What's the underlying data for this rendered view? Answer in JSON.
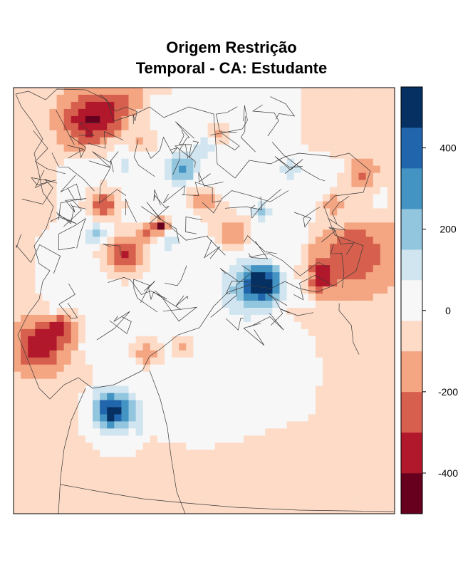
{
  "chart_data": {
    "type": "heatmap",
    "title_lines": [
      "Origem Restrição",
      "Temporal - CA: Estudante"
    ],
    "xlabel": "",
    "ylabel": "",
    "colorbar": {
      "range": [
        -500,
        550
      ],
      "ticks": [
        -400,
        -200,
        0,
        200,
        400
      ],
      "tick_labels": [
        "-400",
        "-200",
        "0",
        "200",
        "400"
      ],
      "bins": [
        {
          "from": -500,
          "to": -400,
          "color": "#67001f"
        },
        {
          "from": -400,
          "to": -300,
          "color": "#b2182b"
        },
        {
          "from": -300,
          "to": -200,
          "color": "#d6604d"
        },
        {
          "from": -200,
          "to": -100,
          "color": "#f4a582"
        },
        {
          "from": -100,
          "to": -25,
          "color": "#fddbc7"
        },
        {
          "from": -25,
          "to": 75,
          "color": "#f7f7f7"
        },
        {
          "from": 75,
          "to": 150,
          "color": "#d1e5f0"
        },
        {
          "from": 150,
          "to": 250,
          "color": "#92c5de"
        },
        {
          "from": 250,
          "to": 350,
          "color": "#4393c3"
        },
        {
          "from": 350,
          "to": 450,
          "color": "#2166ac"
        },
        {
          "from": 450,
          "to": 550,
          "color": "#053061"
        }
      ]
    },
    "grid": {
      "cols": 53,
      "rows": 60
    },
    "background_value": -60,
    "hotspots": [
      {
        "cx": 10,
        "cy": 4,
        "amp": -330,
        "sigma": 2.5
      },
      {
        "cx": 14,
        "cy": 2,
        "amp": -150,
        "sigma": 2.2
      },
      {
        "cx": 3,
        "cy": 36,
        "amp": -300,
        "sigma": 2.4
      },
      {
        "cx": 6,
        "cy": 33,
        "amp": -220,
        "sigma": 1.6
      },
      {
        "cx": 15,
        "cy": 23,
        "amp": -330,
        "sigma": 1.8
      },
      {
        "cx": 12,
        "cy": 16,
        "amp": -260,
        "sigma": 1.4
      },
      {
        "cx": 20,
        "cy": 19,
        "amp": -500,
        "sigma": 0.7
      },
      {
        "cx": 18,
        "cy": 20,
        "amp": -220,
        "sigma": 0.8
      },
      {
        "cx": 30,
        "cy": 20,
        "amp": -200,
        "sigma": 1.5
      },
      {
        "cx": 27,
        "cy": 16,
        "amp": -120,
        "sigma": 1.2
      },
      {
        "cx": 28,
        "cy": 6,
        "amp": -120,
        "sigma": 1.0
      },
      {
        "cx": 17,
        "cy": 7,
        "amp": -100,
        "sigma": 1.4
      },
      {
        "cx": 25,
        "cy": 15,
        "amp": -100,
        "sigma": 1.2
      },
      {
        "cx": 42,
        "cy": 26,
        "amp": -320,
        "sigma": 1.4
      },
      {
        "cx": 47,
        "cy": 23,
        "amp": -220,
        "sigma": 3.5
      },
      {
        "cx": 48,
        "cy": 12,
        "amp": -220,
        "sigma": 1.5
      },
      {
        "cx": 44,
        "cy": 16,
        "amp": -150,
        "sigma": 1.0
      },
      {
        "cx": 18,
        "cy": 37,
        "amp": -160,
        "sigma": 1.2
      },
      {
        "cx": 23,
        "cy": 36,
        "amp": -130,
        "sigma": 1.0
      },
      {
        "cx": 34,
        "cy": 27,
        "amp": 520,
        "sigma": 1.6
      },
      {
        "cx": 32,
        "cy": 28,
        "amp": 160,
        "sigma": 3.2
      },
      {
        "cx": 13,
        "cy": 45,
        "amp": 400,
        "sigma": 1.6
      },
      {
        "cx": 14,
        "cy": 46,
        "amp": 150,
        "sigma": 3.2
      },
      {
        "cx": 23,
        "cy": 11,
        "amp": 280,
        "sigma": 1.4
      },
      {
        "cx": 21,
        "cy": 21,
        "amp": 120,
        "sigma": 1.2
      },
      {
        "cx": 11,
        "cy": 20,
        "amp": 220,
        "sigma": 1.0
      },
      {
        "cx": 34,
        "cy": 17,
        "amp": 180,
        "sigma": 0.8
      },
      {
        "cx": 38,
        "cy": 11,
        "amp": 140,
        "sigma": 1.2
      },
      {
        "cx": 41,
        "cy": 26,
        "amp": 180,
        "sigma": 0.6
      },
      {
        "cx": 5,
        "cy": 31,
        "amp": 150,
        "sigma": 1.0
      },
      {
        "cx": 26,
        "cy": 8,
        "amp": 140,
        "sigma": 1.0
      },
      {
        "cx": 15,
        "cy": 10,
        "amp": 100,
        "sigma": 1.4
      }
    ],
    "white_region": {
      "poly": [
        [
          6,
          19
        ],
        [
          6,
          12
        ],
        [
          9,
          9
        ],
        [
          14,
          7
        ],
        [
          18,
          2
        ],
        [
          24,
          0
        ],
        [
          40,
          0
        ],
        [
          40,
          8
        ],
        [
          46,
          10
        ],
        [
          52,
          12
        ],
        [
          52,
          19
        ],
        [
          44,
          20
        ],
        [
          41,
          23
        ],
        [
          41,
          29
        ],
        [
          42,
          31
        ],
        [
          38,
          31
        ],
        [
          41,
          34
        ],
        [
          43,
          39
        ],
        [
          42,
          46
        ],
        [
          34,
          49
        ],
        [
          26,
          51
        ],
        [
          18,
          49
        ],
        [
          12,
          46
        ],
        [
          11,
          40
        ],
        [
          8,
          34
        ],
        [
          5,
          30
        ],
        [
          3,
          28
        ],
        [
          3,
          22
        ]
      ]
    }
  },
  "colors": {
    "frame": "#000000",
    "boundary_lines": "#3a3a3a"
  }
}
